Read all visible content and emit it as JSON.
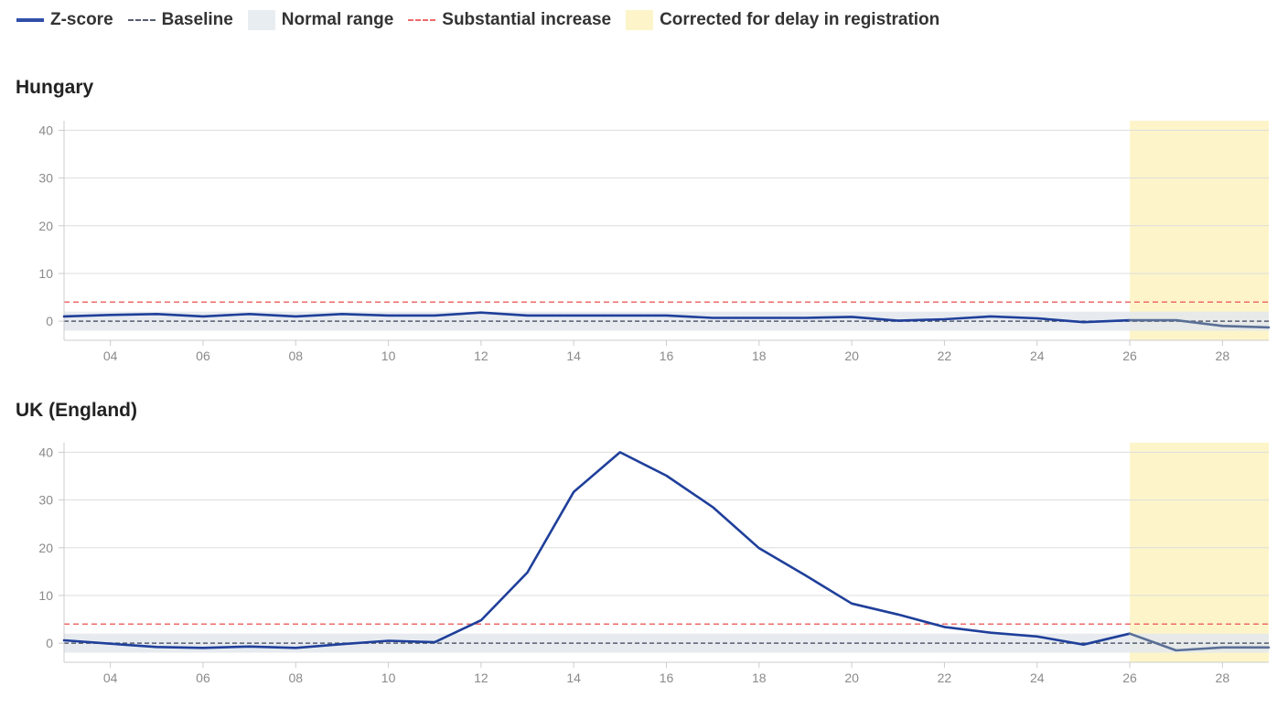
{
  "legend": [
    {
      "label": "Z-score",
      "kind": "line",
      "color": "#1f3f9a"
    },
    {
      "label": "Baseline",
      "kind": "dash-dark",
      "color": "#555e70"
    },
    {
      "label": "Normal range",
      "kind": "band",
      "color": "#e8edf1"
    },
    {
      "label": "Substantial increase",
      "kind": "dash-red",
      "color": "#ee6b6b"
    },
    {
      "label": "Corrected for delay in registration",
      "kind": "yellow",
      "color": "#fdf5c9"
    }
  ],
  "chart_data": [
    {
      "type": "line",
      "title": "Hungary",
      "xlabel": "",
      "ylabel": "",
      "x": [
        3,
        4,
        5,
        6,
        7,
        8,
        9,
        10,
        11,
        12,
        13,
        14,
        15,
        16,
        17,
        18,
        19,
        20,
        21,
        22,
        23,
        24,
        25,
        26,
        27,
        28,
        29
      ],
      "xlim": [
        3,
        29
      ],
      "ylim": [
        -4,
        42
      ],
      "yticks": [
        0,
        10,
        20,
        30,
        40
      ],
      "xticks": [
        "04",
        "06",
        "08",
        "10",
        "12",
        "14",
        "16",
        "18",
        "20",
        "22",
        "24",
        "26",
        "28"
      ],
      "xtick_values": [
        4,
        6,
        8,
        10,
        12,
        14,
        16,
        18,
        20,
        22,
        24,
        26,
        28
      ],
      "series": [
        {
          "values": [
            1.0,
            1.3,
            1.5,
            1.0,
            1.5,
            1.0,
            1.5,
            1.2,
            1.2,
            1.8,
            1.2,
            1.2,
            1.2,
            1.2,
            0.7,
            0.7,
            0.7,
            0.9,
            0.1,
            0.4,
            1.0,
            0.6,
            -0.2,
            0.2,
            0.2,
            -1.0,
            -1.3
          ]
        }
      ],
      "baseline": 0,
      "normal_range": [
        -2,
        2
      ],
      "substantial_increase": 4,
      "corrected_from": 26,
      "grid": true
    },
    {
      "type": "line",
      "title": "UK (England)",
      "xlabel": "",
      "ylabel": "",
      "x": [
        3,
        4,
        5,
        6,
        7,
        8,
        9,
        10,
        11,
        12,
        13,
        14,
        15,
        16,
        17,
        18,
        19,
        20,
        21,
        22,
        23,
        24,
        25,
        26,
        27,
        28,
        29
      ],
      "xlim": [
        3,
        29
      ],
      "ylim": [
        -4,
        42
      ],
      "yticks": [
        0,
        10,
        20,
        30,
        40
      ],
      "xticks": [
        "04",
        "06",
        "08",
        "10",
        "12",
        "14",
        "16",
        "18",
        "20",
        "22",
        "24",
        "26",
        "28"
      ],
      "xtick_values": [
        4,
        6,
        8,
        10,
        12,
        14,
        16,
        18,
        20,
        22,
        24,
        26,
        28
      ],
      "series": [
        {
          "values": [
            0.6,
            -0.1,
            -0.8,
            -1.0,
            -0.7,
            -1.0,
            -0.2,
            0.5,
            0.2,
            4.8,
            14.8,
            31.7,
            40.0,
            35.1,
            28.5,
            19.9,
            14.2,
            8.3,
            6.0,
            3.4,
            2.2,
            1.4,
            -0.3,
            2.0,
            -1.5,
            -0.9,
            -0.9
          ]
        }
      ],
      "baseline": 0,
      "normal_range": [
        -2,
        2
      ],
      "substantial_increase": 4,
      "corrected_from": 26,
      "grid": true
    }
  ]
}
